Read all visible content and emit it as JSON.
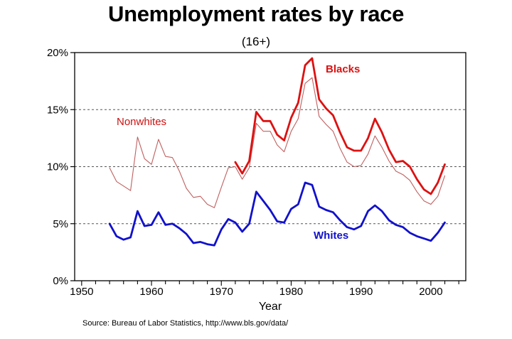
{
  "chart_data": {
    "type": "line",
    "title": "Unemployment rates by race",
    "subtitle": "(16+)",
    "xlabel": "Year",
    "ylabel": "",
    "xlim": [
      1949,
      2005
    ],
    "ylim": [
      0,
      20
    ],
    "x_ticks": [
      1950,
      1960,
      1970,
      1980,
      1990,
      2000
    ],
    "y_ticks": [
      0,
      5,
      10,
      15,
      20
    ],
    "y_tick_labels": [
      "0%",
      "5%",
      "10%",
      "15%",
      "20%"
    ],
    "grid": "horizontal dashed at 5%, 10%, 15%",
    "legend": "none (series labeled directly on plot)",
    "series": [
      {
        "name": "Nonwhites",
        "color": "#c06060",
        "style": "thin",
        "x": [
          1954,
          1955,
          1956,
          1957,
          1958,
          1959,
          1960,
          1961,
          1962,
          1963,
          1964,
          1965,
          1966,
          1967,
          1968,
          1969,
          1970,
          1971,
          1972,
          1973,
          1974,
          1975,
          1976,
          1977,
          1978,
          1979,
          1980,
          1981,
          1982,
          1983,
          1984,
          1985,
          1986,
          1987,
          1988,
          1989,
          1990,
          1991,
          1992,
          1993,
          1994,
          1995,
          1996,
          1997,
          1998,
          1999,
          2000,
          2001,
          2002
        ],
        "values": [
          9.9,
          8.7,
          8.3,
          7.9,
          12.6,
          10.7,
          10.2,
          12.4,
          10.9,
          10.8,
          9.6,
          8.1,
          7.3,
          7.4,
          6.7,
          6.4,
          8.2,
          9.9,
          10.0,
          8.9,
          9.9,
          13.8,
          13.1,
          13.1,
          11.9,
          11.3,
          13.1,
          14.2,
          17.3,
          17.8,
          14.4,
          13.7,
          13.1,
          11.6,
          10.4,
          10.0,
          10.1,
          11.1,
          12.7,
          11.7,
          10.5,
          9.6,
          9.3,
          8.8,
          7.8,
          7.0,
          6.7,
          7.4,
          9.2
        ]
      },
      {
        "name": "Blacks",
        "color": "#dd1111",
        "style": "thick",
        "x": [
          1972,
          1973,
          1974,
          1975,
          1976,
          1977,
          1978,
          1979,
          1980,
          1981,
          1982,
          1983,
          1984,
          1985,
          1986,
          1987,
          1988,
          1989,
          1990,
          1991,
          1992,
          1993,
          1994,
          1995,
          1996,
          1997,
          1998,
          1999,
          2000,
          2001,
          2002
        ],
        "values": [
          10.4,
          9.4,
          10.5,
          14.8,
          14.0,
          14.0,
          12.8,
          12.3,
          14.3,
          15.6,
          18.9,
          19.5,
          15.9,
          15.1,
          14.5,
          13.0,
          11.7,
          11.4,
          11.4,
          12.5,
          14.2,
          13.0,
          11.5,
          10.4,
          10.5,
          10.0,
          8.9,
          8.0,
          7.6,
          8.6,
          10.2
        ]
      },
      {
        "name": "Whites",
        "color": "#1111cc",
        "style": "thick",
        "x": [
          1954,
          1955,
          1956,
          1957,
          1958,
          1959,
          1960,
          1961,
          1962,
          1963,
          1964,
          1965,
          1966,
          1967,
          1968,
          1969,
          1970,
          1971,
          1972,
          1973,
          1974,
          1975,
          1976,
          1977,
          1978,
          1979,
          1980,
          1981,
          1982,
          1983,
          1984,
          1985,
          1986,
          1987,
          1988,
          1989,
          1990,
          1991,
          1992,
          1993,
          1994,
          1995,
          1996,
          1997,
          1998,
          1999,
          2000,
          2001,
          2002
        ],
        "values": [
          5.0,
          3.9,
          3.6,
          3.8,
          6.1,
          4.8,
          4.9,
          6.0,
          4.9,
          5.0,
          4.6,
          4.1,
          3.3,
          3.4,
          3.2,
          3.1,
          4.5,
          5.4,
          5.1,
          4.3,
          5.0,
          7.8,
          7.0,
          6.2,
          5.2,
          5.1,
          6.3,
          6.7,
          8.6,
          8.4,
          6.5,
          6.2,
          6.0,
          5.3,
          4.7,
          4.5,
          4.8,
          6.1,
          6.6,
          6.1,
          5.3,
          4.9,
          4.7,
          4.2,
          3.9,
          3.7,
          3.5,
          4.2,
          5.1
        ]
      }
    ],
    "annotations": [
      "Nonwhites",
      "Blacks",
      "Whites"
    ]
  },
  "source_note": "Source: Bureau of Labor Statistics,  http://www.bls.gov/data/"
}
